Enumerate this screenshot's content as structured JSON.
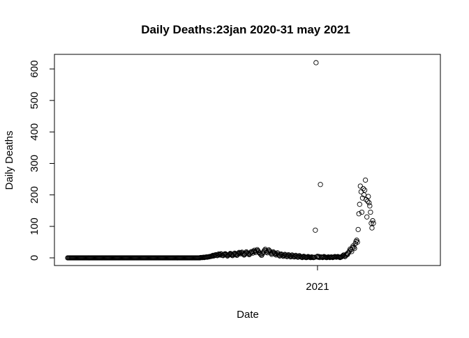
{
  "chart_data": {
    "type": "scatter",
    "title": "Daily Deaths:23jan 2020-31 may 2021",
    "xlabel": "Date",
    "ylabel": "Daily Deaths",
    "x_range": [
      "2020-01-23",
      "2021-05-31"
    ],
    "ylim": [
      0,
      620
    ],
    "grid": false,
    "legend": "none",
    "marker": "open-circle",
    "colors": {
      "points": "#000000",
      "axes": "#000000",
      "background": "#ffffff"
    },
    "x_ticks": [
      {
        "value": "2021-01-01",
        "label": "2021"
      }
    ],
    "y_ticks": [
      {
        "value": 0,
        "label": "0"
      },
      {
        "value": 100,
        "label": "100"
      },
      {
        "value": 200,
        "label": "200"
      },
      {
        "value": 300,
        "label": "300"
      },
      {
        "value": 400,
        "label": "400"
      },
      {
        "value": 500,
        "label": "500"
      },
      {
        "value": 600,
        "label": "600"
      }
    ],
    "series": [
      {
        "start_date": "2020-01-23",
        "values": [
          0,
          0,
          0,
          0,
          0,
          0,
          0,
          0,
          0,
          0,
          0,
          0,
          0,
          0,
          0,
          0,
          0,
          0,
          0,
          0,
          0,
          0,
          0,
          0,
          0,
          0,
          0,
          0,
          0,
          0,
          0,
          0,
          0,
          0,
          0,
          0,
          0,
          0,
          0,
          0,
          0,
          0,
          0,
          0,
          0,
          0,
          0,
          0,
          0,
          0,
          0,
          0,
          0,
          0,
          0,
          0,
          0,
          0,
          0,
          0,
          0,
          0,
          0,
          0,
          0,
          0,
          0,
          0,
          0,
          0,
          0,
          0,
          0,
          0,
          0,
          0,
          0,
          0,
          0,
          0,
          0,
          0,
          0,
          0,
          0,
          0,
          0,
          0,
          0,
          0,
          0,
          0,
          0,
          0,
          0,
          0,
          0,
          0,
          0,
          0,
          0,
          0,
          0,
          0,
          0,
          0,
          0,
          0,
          0,
          0,
          0,
          0,
          0,
          0,
          0,
          0,
          0,
          0,
          0,
          0,
          0,
          0,
          0,
          0,
          0,
          0,
          0,
          0,
          0,
          0,
          0,
          0,
          0,
          0,
          0,
          0,
          0,
          0,
          0,
          0,
          0,
          0,
          0,
          0,
          0,
          0,
          0,
          0,
          0,
          0,
          0,
          0,
          0,
          0,
          0,
          0,
          0,
          0,
          0,
          0,
          0,
          0,
          0,
          0,
          0,
          0,
          0,
          0,
          0,
          0,
          0,
          0,
          0,
          0,
          0,
          0,
          0,
          0,
          0,
          0,
          0,
          0,
          0,
          1,
          1,
          1,
          1,
          2,
          1,
          2,
          2,
          3,
          2,
          3,
          3,
          4,
          4,
          5,
          5,
          6,
          8,
          6,
          7,
          9,
          10,
          8,
          7,
          11,
          12,
          10,
          9,
          13,
          11,
          8,
          7,
          10,
          12,
          13,
          11,
          9,
          6,
          8,
          10,
          12,
          14,
          11,
          9,
          7,
          10,
          13,
          15,
          12,
          10,
          8,
          11,
          14,
          17,
          15,
          13,
          16,
          18,
          14,
          11,
          9,
          12,
          15,
          19,
          17,
          14,
          12,
          10,
          13,
          16,
          20,
          18,
          15,
          21,
          24,
          20,
          17,
          22,
          26,
          23,
          19,
          16,
          13,
          11,
          8,
          12,
          16,
          20,
          24,
          27,
          23,
          19,
          16,
          21,
          25,
          22,
          18,
          14,
          11,
          15,
          19,
          17,
          14,
          12,
          9,
          13,
          16,
          11,
          8,
          6,
          9,
          12,
          10,
          7,
          5,
          8,
          11,
          9,
          6,
          4,
          7,
          10,
          8,
          5,
          3,
          6,
          9,
          7,
          4,
          3,
          5,
          8,
          6,
          3,
          2,
          4,
          7,
          5,
          3,
          2,
          1,
          3,
          5,
          4,
          2,
          1,
          1,
          2,
          4,
          3,
          2,
          1,
          1,
          3,
          2,
          1,
          1,
          2,
          88,
          620,
          3,
          5,
          2,
          4,
          1,
          233,
          3,
          2,
          1,
          2,
          4,
          3,
          2,
          1,
          1,
          2,
          3,
          2,
          1,
          2,
          3,
          2,
          1,
          2,
          3,
          4,
          3,
          2,
          3,
          4,
          3,
          2,
          1,
          2,
          3,
          5,
          7,
          9,
          6,
          4,
          8,
          12,
          10,
          14,
          18,
          22,
          28,
          25,
          20,
          32,
          38,
          34,
          30,
          45,
          52,
          56,
          50,
          90,
          140,
          170,
          228,
          210,
          145,
          190,
          220,
          200,
          215,
          247,
          185,
          130,
          180,
          195,
          175,
          165,
          145,
          110,
          95,
          118,
          110
        ]
      }
    ]
  }
}
